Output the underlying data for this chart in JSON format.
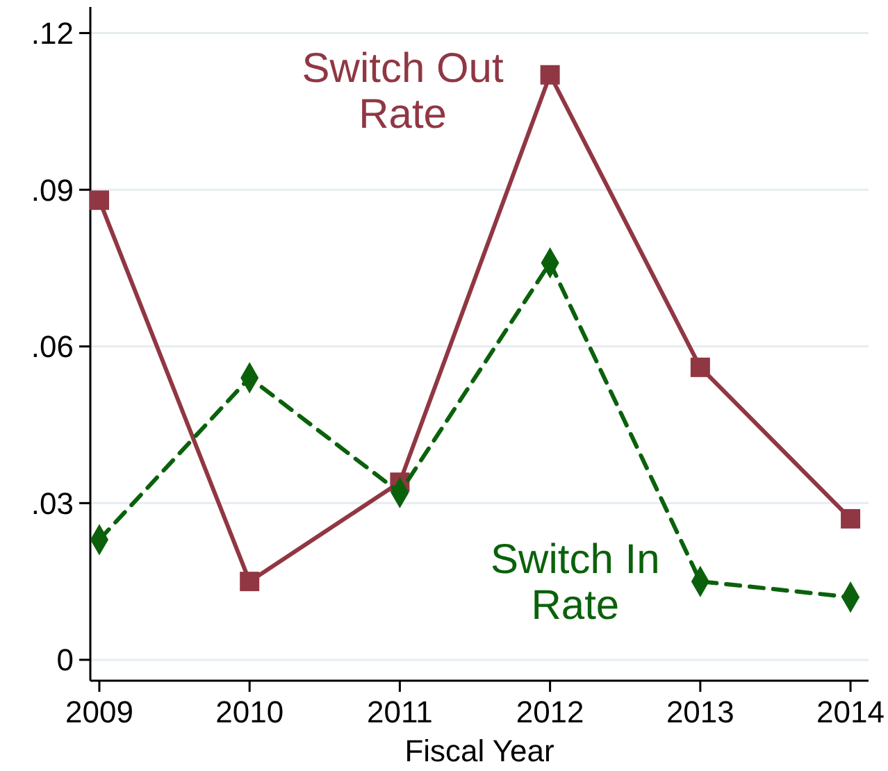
{
  "chart_data": {
    "type": "line",
    "xlabel": "Fiscal Year",
    "x": [
      2009,
      2010,
      2011,
      2012,
      2013,
      2014
    ],
    "xlim": [
      2008.94,
      2014.12
    ],
    "xticks": [
      2009,
      2010,
      2011,
      2012,
      2013,
      2014
    ],
    "ylim": [
      -0.004,
      0.125
    ],
    "yticks": [
      {
        "value": 0,
        "label": "0"
      },
      {
        "value": 0.03,
        "label": ".03"
      },
      {
        "value": 0.06,
        "label": ".06"
      },
      {
        "value": 0.09,
        "label": ".09"
      },
      {
        "value": 0.12,
        "label": ".12"
      }
    ],
    "grid": "y",
    "series": [
      {
        "name": "Switch Out Rate",
        "color": "#903743",
        "marker": "square",
        "line_style": "solid",
        "values": [
          0.088,
          0.015,
          0.034,
          0.112,
          0.056,
          0.027
        ]
      },
      {
        "name": "Switch In Rate",
        "color": "#0b610b",
        "marker": "diamond",
        "line_style": "dashed",
        "values": [
          0.023,
          0.054,
          0.032,
          0.076,
          0.015,
          0.012
        ]
      }
    ]
  }
}
